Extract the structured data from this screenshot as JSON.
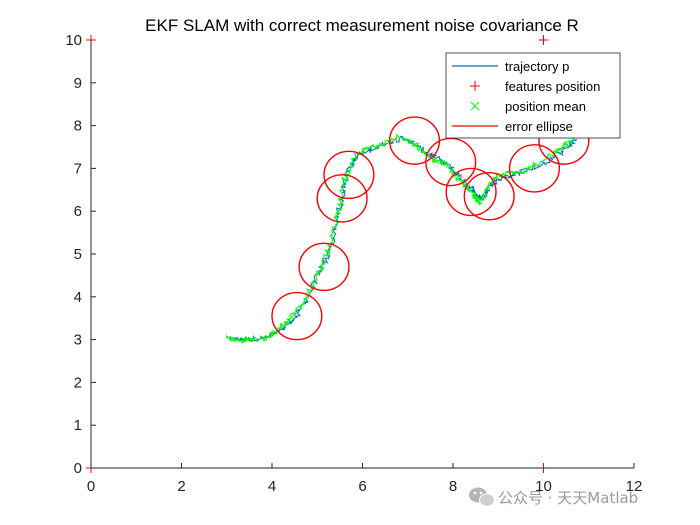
{
  "chart_data": {
    "type": "line",
    "title": "EKF SLAM with correct measurement noise covariance R",
    "xlim": [
      0,
      12
    ],
    "ylim": [
      0,
      10
    ],
    "xticks": [
      0,
      2,
      4,
      6,
      8,
      10,
      12
    ],
    "yticks": [
      0,
      1,
      2,
      3,
      4,
      5,
      6,
      7,
      8,
      9,
      10
    ],
    "xtick_labels": [
      "0",
      "2",
      "4",
      "6",
      "8",
      "10",
      "12"
    ],
    "ytick_labels": [
      "0",
      "1",
      "2",
      "3",
      "4",
      "5",
      "6",
      "7",
      "8",
      "9",
      "10"
    ],
    "grid": false,
    "legend_position": "top-right",
    "colors": {
      "trajectory": "#0072BD",
      "features": "#FF0000",
      "position_mean": "#00FF00",
      "ellipse": "#FF0000",
      "axes": "#262626"
    },
    "legend": [
      {
        "key": "trajectory",
        "label": "trajectory p",
        "marker": "line"
      },
      {
        "key": "features",
        "label": "features position",
        "marker": "plus"
      },
      {
        "key": "position_mean",
        "label": "position mean",
        "marker": "x"
      },
      {
        "key": "ellipse",
        "label": "error ellipse",
        "marker": "line"
      }
    ],
    "series": [
      {
        "name": "trajectory p",
        "key": "trajectory",
        "x": [
          3.05,
          3.3,
          3.6,
          3.9,
          4.1,
          4.3,
          4.55,
          4.8,
          5.0,
          5.2,
          5.35,
          5.45,
          5.55,
          5.62,
          5.72,
          5.9,
          6.2,
          6.5,
          6.85,
          7.1,
          7.35,
          7.6,
          7.9,
          8.1,
          8.3,
          8.45,
          8.55,
          8.65,
          8.8,
          9.0,
          9.3,
          9.6,
          9.9,
          10.2,
          10.5,
          10.7
        ],
        "y": [
          3.0,
          3.0,
          3.02,
          3.05,
          3.15,
          3.3,
          3.55,
          4.0,
          4.5,
          4.85,
          5.3,
          5.9,
          6.3,
          6.7,
          7.05,
          7.3,
          7.45,
          7.6,
          7.7,
          7.6,
          7.4,
          7.25,
          7.05,
          6.85,
          6.6,
          6.5,
          6.35,
          6.3,
          6.55,
          6.75,
          6.85,
          6.95,
          7.05,
          7.25,
          7.45,
          7.65
        ]
      },
      {
        "name": "position mean",
        "key": "position_mean",
        "x": [
          3.0,
          3.25,
          3.55,
          3.85,
          4.05,
          4.25,
          4.5,
          4.75,
          4.95,
          5.15,
          5.3,
          5.42,
          5.52,
          5.6,
          5.7,
          5.88,
          6.15,
          6.45,
          6.8,
          7.05,
          7.3,
          7.55,
          7.85,
          8.05,
          8.25,
          8.4,
          8.5,
          8.6,
          8.75,
          8.95,
          9.25,
          9.55,
          9.85,
          10.15,
          10.45,
          10.65
        ],
        "y": [
          3.05,
          2.97,
          3.0,
          3.02,
          3.18,
          3.35,
          3.6,
          3.95,
          4.45,
          4.8,
          5.25,
          5.85,
          6.25,
          6.75,
          7.0,
          7.35,
          7.5,
          7.55,
          7.75,
          7.65,
          7.45,
          7.2,
          7.1,
          6.8,
          6.65,
          6.45,
          6.3,
          6.2,
          6.5,
          6.8,
          6.9,
          6.9,
          7.1,
          7.3,
          7.5,
          7.7
        ]
      }
    ],
    "features": [
      {
        "x": 0,
        "y": 10
      },
      {
        "x": 10,
        "y": 10
      },
      {
        "x": 0,
        "y": 0
      },
      {
        "x": 10,
        "y": 0
      }
    ],
    "ellipses": [
      {
        "cx": 4.55,
        "cy": 3.55,
        "rx": 0.55,
        "ry": 0.55
      },
      {
        "cx": 5.15,
        "cy": 4.7,
        "rx": 0.55,
        "ry": 0.55
      },
      {
        "cx": 5.55,
        "cy": 6.3,
        "rx": 0.55,
        "ry": 0.55
      },
      {
        "cx": 5.7,
        "cy": 6.85,
        "rx": 0.55,
        "ry": 0.55
      },
      {
        "cx": 7.15,
        "cy": 7.65,
        "rx": 0.55,
        "ry": 0.55
      },
      {
        "cx": 7.95,
        "cy": 7.15,
        "rx": 0.55,
        "ry": 0.55
      },
      {
        "cx": 8.4,
        "cy": 6.45,
        "rx": 0.55,
        "ry": 0.55
      },
      {
        "cx": 8.8,
        "cy": 6.35,
        "rx": 0.55,
        "ry": 0.55
      },
      {
        "cx": 9.8,
        "cy": 7.0,
        "rx": 0.55,
        "ry": 0.55
      },
      {
        "cx": 10.45,
        "cy": 7.65,
        "rx": 0.55,
        "ry": 0.55
      }
    ]
  },
  "watermark": {
    "text": "公众号 · 天天Matlab",
    "icon": "wechat-icon"
  }
}
